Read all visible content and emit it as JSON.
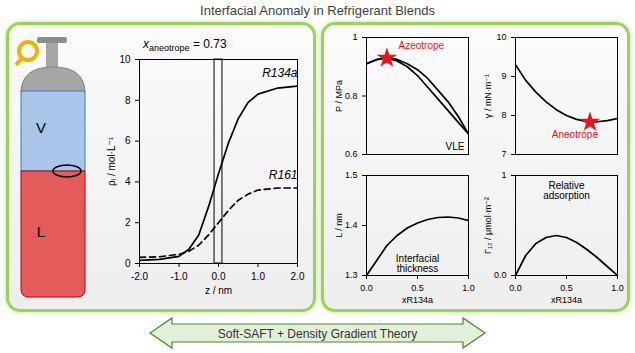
{
  "title": "Interfacial Anomaly in Refrigerant Blends",
  "cylinder": {
    "phases": [
      "V",
      "L"
    ]
  },
  "footer": "Soft-SAFT + Density Gradient Theory",
  "chart_data": [
    {
      "type": "line",
      "xlabel": "z / nm",
      "ylabel": "ρᵢ / mol·L⁻¹",
      "x": [
        -2,
        -1.5,
        -1,
        -0.75,
        -0.5,
        -0.25,
        0,
        0.25,
        0.5,
        0.75,
        1,
        1.5,
        2
      ],
      "series": [
        {
          "name": "R134a",
          "color": "#000000",
          "line_style": "solid",
          "values": [
            0.15,
            0.2,
            0.35,
            0.7,
            1.4,
            2.8,
            4.4,
            5.9,
            7.1,
            7.9,
            8.3,
            8.6,
            8.7
          ]
        },
        {
          "name": "R161",
          "color": "#000000",
          "line_style": "dashed",
          "values": [
            0.3,
            0.33,
            0.45,
            0.6,
            0.9,
            1.4,
            2.0,
            2.6,
            3.1,
            3.4,
            3.6,
            3.7,
            3.7
          ]
        }
      ],
      "xlim": [
        -2,
        2
      ],
      "ylim": [
        0,
        10
      ],
      "xticks": [
        {
          "value": -2,
          "label": "-2.0"
        },
        {
          "value": -1,
          "label": "-1.0"
        },
        {
          "value": 0,
          "label": "0.0"
        },
        {
          "value": 1,
          "label": "1.0"
        },
        {
          "value": 2,
          "label": "2.0"
        }
      ],
      "yticks": [
        0,
        2,
        4,
        6,
        8,
        10
      ],
      "annotation": {
        "symbol": "x",
        "subscript": "aneotrope",
        "text": " = 0.73"
      },
      "interface_band": [
        -0.1,
        0.1
      ]
    },
    {
      "type": "line",
      "ylabel": "P / MPa",
      "x": [
        0,
        0.1,
        0.2,
        0.3,
        0.4,
        0.5,
        0.6,
        0.7,
        0.8,
        0.9,
        1
      ],
      "series": [
        {
          "color": "#000000",
          "values": [
            0.91,
            0.925,
            0.93,
            0.925,
            0.91,
            0.89,
            0.86,
            0.82,
            0.78,
            0.73,
            0.67
          ]
        },
        {
          "color": "#000000",
          "values": [
            0.91,
            0.924,
            0.93,
            0.92,
            0.9,
            0.87,
            0.83,
            0.79,
            0.75,
            0.71,
            0.67
          ]
        },
        {
          "type": "scatter",
          "marker": "star",
          "color": "#e8141b",
          "x": [
            0.2
          ],
          "values": [
            0.93
          ]
        }
      ],
      "xlim": [
        0,
        1
      ],
      "ylim": [
        0.6,
        1
      ],
      "yticks": [
        0.6,
        0.8,
        1
      ],
      "tick_labels": "y",
      "annotations": [
        {
          "text": "Azeotrope",
          "color": "#e8141b"
        },
        {
          "text": "VLE"
        }
      ]
    },
    {
      "type": "line",
      "ylabel": "γ / mN·m⁻¹",
      "x": [
        0,
        0.1,
        0.2,
        0.3,
        0.4,
        0.5,
        0.6,
        0.73,
        0.8,
        0.9,
        1
      ],
      "series": [
        {
          "color": "#000000",
          "values": [
            9.3,
            8.9,
            8.6,
            8.35,
            8.15,
            8.0,
            7.9,
            7.83,
            7.84,
            7.87,
            7.92
          ]
        },
        {
          "type": "scatter",
          "marker": "star",
          "color": "#e8141b",
          "x": [
            0.73
          ],
          "values": [
            7.83
          ]
        }
      ],
      "xlim": [
        0,
        1
      ],
      "ylim": [
        7,
        10
      ],
      "yticks": [
        7,
        8,
        9,
        10
      ],
      "tick_labels": "y",
      "annotations": [
        {
          "text": "Aneotrope",
          "color": "#e8141b"
        }
      ]
    },
    {
      "type": "line",
      "xlabel": "xR134a",
      "ylabel": "L / nm",
      "x": [
        0,
        0.1,
        0.2,
        0.3,
        0.4,
        0.5,
        0.6,
        0.7,
        0.8,
        0.9,
        1
      ],
      "series": [
        {
          "color": "#000000",
          "values": [
            1.3,
            1.33,
            1.36,
            1.38,
            1.395,
            1.405,
            1.412,
            1.416,
            1.417,
            1.415,
            1.41
          ]
        }
      ],
      "xlim": [
        0,
        1
      ],
      "ylim": [
        1.3,
        1.5
      ],
      "xticks": [
        {
          "value": 0,
          "label": "0.0"
        },
        {
          "value": 0.5,
          "label": "0.5"
        },
        {
          "value": 1,
          "label": "1.0"
        }
      ],
      "yticks": [
        1.3,
        1.4,
        1.5
      ],
      "annotations": [
        {
          "text": "Interfacial thickness"
        }
      ]
    },
    {
      "type": "line",
      "xlabel": "xR134a",
      "ylabel": "Γ₁₂ / μmol·m⁻²",
      "x": [
        0,
        0.1,
        0.2,
        0.3,
        0.4,
        0.5,
        0.6,
        0.7,
        0.8,
        0.9,
        1
      ],
      "series": [
        {
          "color": "#000000",
          "values": [
            0.0,
            0.2,
            0.32,
            0.38,
            0.4,
            0.38,
            0.33,
            0.26,
            0.18,
            0.09,
            0.0
          ]
        }
      ],
      "xlim": [
        0,
        1
      ],
      "ylim": [
        0,
        1
      ],
      "xticks": [
        {
          "value": 0,
          "label": "0.0"
        },
        {
          "value": 0.5,
          "label": "0.5"
        },
        {
          "value": 1,
          "label": "1.0"
        }
      ],
      "yticks": [
        {
          "value": 0,
          "label": "0.0"
        },
        1
      ],
      "annotations": [
        {
          "text": "Relative adsorption"
        }
      ]
    }
  ]
}
